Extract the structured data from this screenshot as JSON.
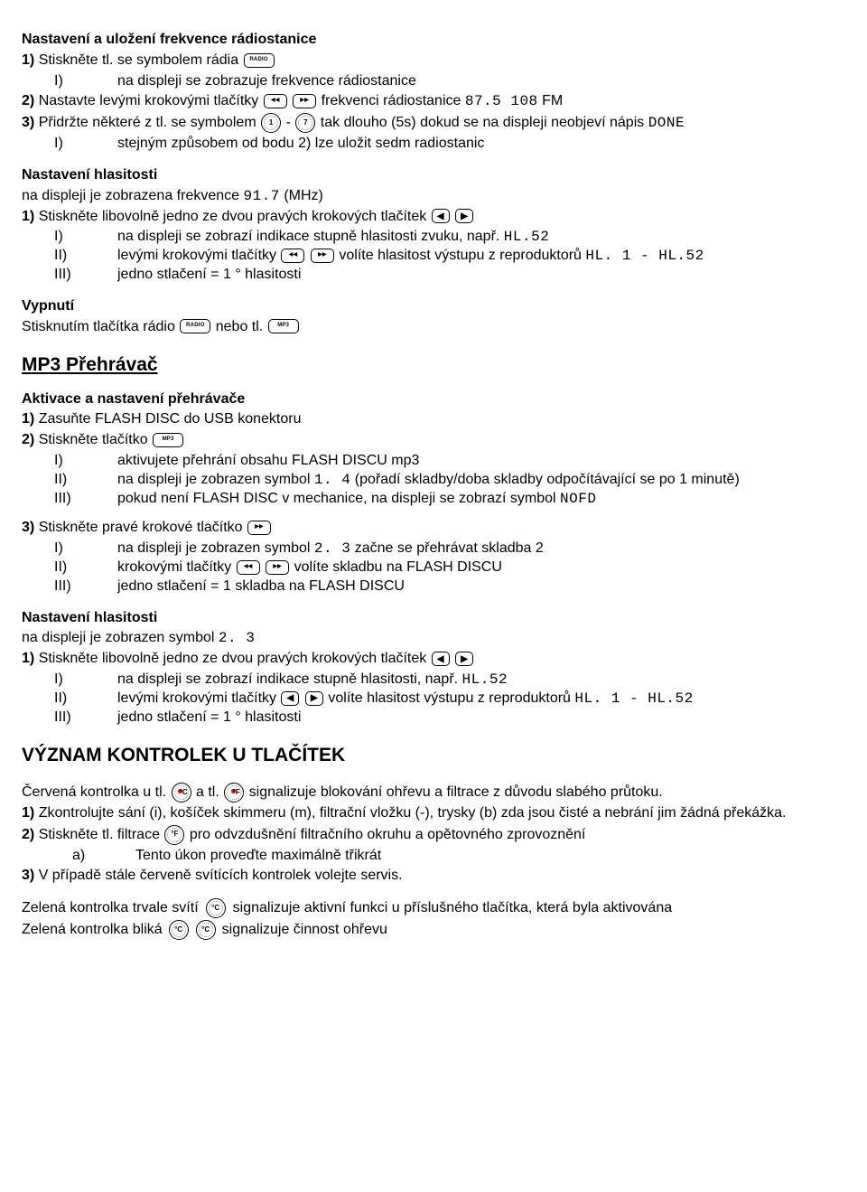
{
  "sec1": {
    "title": "Nastavení a uložení frekvence rádiostanice",
    "l1_label": "1)",
    "l1_text_a": "Stiskněte tl. se symbolem rádia ",
    "btn_radio": "RADIO",
    "l1_i_label": "I)",
    "l1_i_text": "na displeji se zobrazuje frekvence rádiostanice",
    "l2_label": "2)",
    "l2_text_a": "Nastavte levými krokovými tlačítky ",
    "btn_rw": "◀◀",
    "btn_ff": "▶▶",
    "l2_text_b": " frekvenci rádiostanice ",
    "l2_range": "87.5  108",
    "l2_fm": "  FM",
    "l3_label": "3)",
    "l3_text_a": "Přidržte některé z tl. se symbolem ",
    "preset_1": "1",
    "dash": " - ",
    "preset_7": "7",
    "l3_text_b": " tak dlouho (5s)  dokud se na displeji neobjeví nápis ",
    "done": "DONE",
    "l3_i_label": "I)",
    "l3_i_text": "stejným způsobem od bodu 2) lze uložit sedm radiostanic"
  },
  "sec2": {
    "title": "Nastavení hlasitosti",
    "sub_a": "na displeji je zobrazena frekvence ",
    "freq": "91.7",
    "mhz": " (MHz)",
    "l1_label": "1)",
    "l1_text": "Stiskněte libovolně jedno ze dvou pravých krokových tlačítek ",
    "btn_l": "◀",
    "btn_r": "▶",
    "i_label": "I)",
    "i_text_a": "na displeji se zobrazí indikace stupně hlasitosti zvuku, např. ",
    "hl52": "HL.52",
    "ii_label": "II)",
    "ii_text_a": "levými krokovými tlačítky ",
    "ii_text_b": "volíte hlasitost výstupu z reproduktorů ",
    "hl1_52": "HL. 1 - HL.52",
    "iii_label": "III)",
    "iii_text": "jedno stlačení = 1 ° hlasitosti"
  },
  "sec3": {
    "title": "Vypnutí",
    "text_a": "Stisknutím tlačítka rádio ",
    "text_b": " nebo tl. ",
    "btn_mp3": "MP3"
  },
  "sec4": {
    "title": "MP3 Přehrávač"
  },
  "sec5": {
    "title": "Aktivace a nastavení přehrávače",
    "l1_label": "1)",
    "l1_text": "Zasuňte FLASH DISC do USB konektoru",
    "l2_label": "2)",
    "l2_text": "Stiskněte tlačítko ",
    "i_label": "I)",
    "i_text": "aktivujete přehrání obsahu FLASH DISCU mp3",
    "ii_label": "II)",
    "ii_text_a": "na displeji je zobrazen symbol ",
    "sym14": "1. 4",
    "ii_text_b": " (pořadí skladby/doba skladby odpočítávající se po 1 minutě)",
    "iii_label": "III)",
    "iii_text_a": "pokud není FLASH DISC v mechanice, na displeji se zobrazí symbol ",
    "nofd": "NOFD"
  },
  "sec6": {
    "l3_label": "3)",
    "l3_text": "Stiskněte pravé krokové tlačítko ",
    "i_label": "I)",
    "i_text_a": "na displeji je zobrazen symbol  ",
    "sym23": "2. 3",
    "i_text_b": " začne se přehrávat skladba 2",
    "ii_label": "II)",
    "ii_text_a": "krokovými tlačítky ",
    "ii_text_b": " volíte skladbu na FLASH DISCU",
    "iii_label": "III)",
    "iii_text": "jedno stlačení = 1 skladba na FLASH DISCU"
  },
  "sec7": {
    "title": "Nastavení hlasitosti",
    "sub_a": "na displeji je zobrazen symbol ",
    "sym23": "2. 3",
    "l1_label": "1)",
    "l1_text": "Stiskněte libovolně jedno ze dvou pravých krokových tlačítek ",
    "i_label": "I)",
    "i_text_a": "na displeji se zobrazí indikace stupně hlasitosti, např. ",
    "hl52": "HL.52",
    "ii_label": "II)",
    "ii_text_a": "levými krokovými tlačítky ",
    "ii_text_b": " volíte hlasitost výstupu z reproduktorů ",
    "hl1_52": "HL. 1 - HL.52",
    "iii_label": "III)",
    "iii_text": "jedno stlačení = 1 °  hlasitosti"
  },
  "sec8": {
    "title": "VÝZNAM KONTROLEK U TLAČÍTEK",
    "red_a": "Červená kontrolka u tl. ",
    "btn_c": "°C",
    "red_b": " a tl. ",
    "btn_f": "°F",
    "red_c": " signalizuje blokování ohřevu a filtrace z důvodu slabého průtoku.",
    "l1_label": "1)",
    "l1_text": "Zkontrolujte sání (i), košíček skimmeru (m), filtrační vložku (-), trysky (b) zda jsou čisté a nebrání jim žádná překážka.",
    "l2_label": "2)",
    "l2_text_a": "Stiskněte tl. filtrace ",
    "l2_text_b": " pro odvzdušnění filtračního okruhu a opětovného zprovoznění",
    "a_label": "a)",
    "a_text": "Tento úkon proveďte maximálně třikrát",
    "l3_label": "3)",
    "l3_text": "V případě stále červeně svítících kontrolek volejte servis.",
    "green1_a": "Zelená kontrolka trvale svítí",
    "green1_b": "signalizuje aktivní funkci u příslušného tlačítka, která byla aktivována",
    "green2_a": "Zelená kontrolka bliká ",
    "green2_b": "signalizuje činnost ohřevu"
  }
}
